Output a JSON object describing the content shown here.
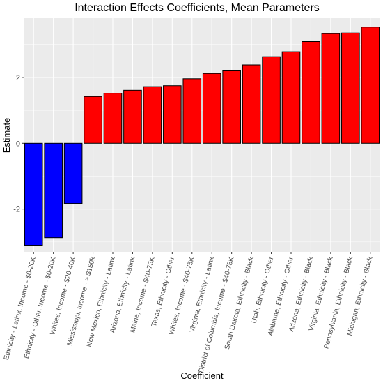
{
  "chart_data": {
    "type": "bar",
    "title": "Interaction Effects Coefficients, Mean Parameters",
    "xlabel": "Coefficient",
    "ylabel": "Estimate",
    "ylim": [
      -3.3,
      3.8
    ],
    "yticks": [
      -2,
      0,
      2
    ],
    "grid": true,
    "legend": "none",
    "colors": {
      "negative": "#0000ff",
      "positive": "#ff0000",
      "panel": "#ebebeb",
      "grid": "#ffffff",
      "bar_edge": "#000000"
    },
    "categories": [
      "Ethnicity - Latinx, Income - $0-20K",
      "Ethnicity - Other, Income - $0-20K",
      "Whites, Income - $20-40K",
      "Mississippi, Income - > $150k",
      "New Mexico, Ethnicity - Latinx",
      "Arizona, Ethnicity - Latinx",
      "Maine, Income - $40-75K",
      "Texas, Ethnicity - Other",
      "Whites, Income - $40-75K",
      "Virginia, Ethnicity - Latinx",
      "District of Columbia, Income - $40-75K",
      "South Dakota, Ethnicity - Black",
      "Utah, Ethnicity - Other",
      "Alabama, Ethnicity - Other",
      "Arizona, Ethnicity - Black",
      "Virginia, Ethnicity - Black",
      "Pennsylvania, Ethnicity - Black",
      "Michigan, Ethnicity - Black"
    ],
    "values": [
      -3.1,
      -2.87,
      -1.83,
      1.42,
      1.52,
      1.61,
      1.72,
      1.75,
      1.96,
      2.12,
      2.2,
      2.38,
      2.63,
      2.78,
      3.09,
      3.33,
      3.35,
      3.53
    ]
  }
}
